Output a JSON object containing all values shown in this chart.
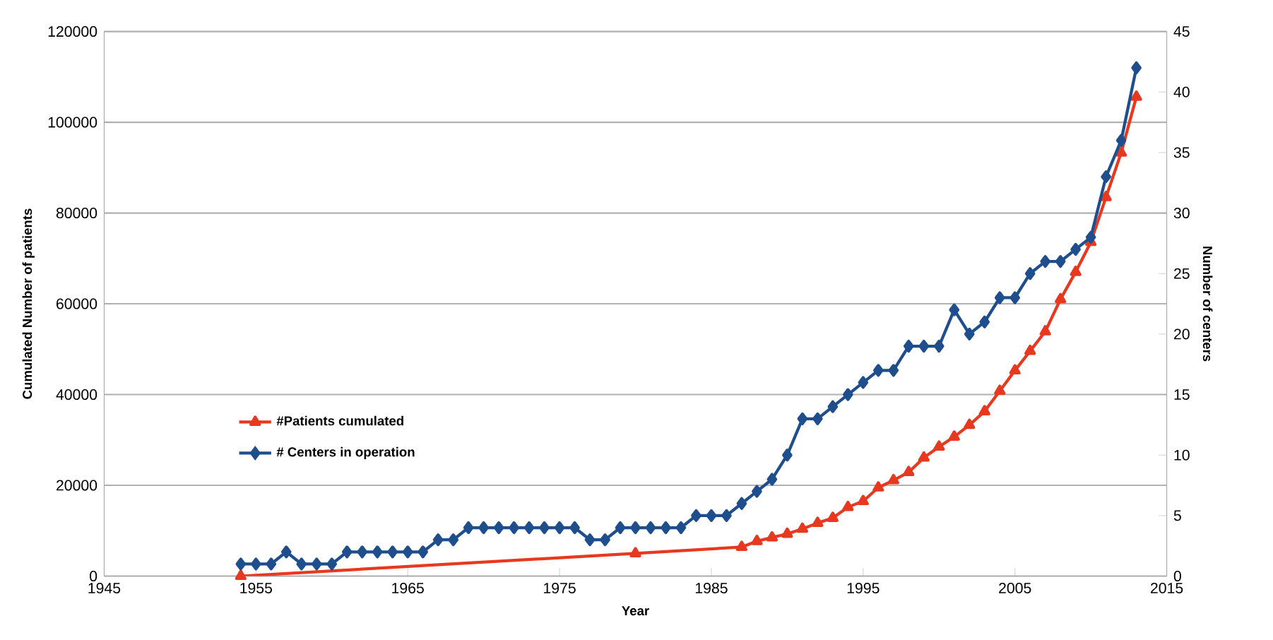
{
  "chart_data": {
    "type": "line",
    "xlabel": "Year",
    "ylabel": "Cumulated Number of patients",
    "y2label": "Number of centers",
    "xlim": [
      1945,
      2015
    ],
    "xticks": [
      1945,
      1955,
      1965,
      1975,
      1985,
      1995,
      2005,
      2015
    ],
    "ylim": [
      0,
      120000
    ],
    "yticks": [
      0,
      20000,
      40000,
      60000,
      80000,
      100000,
      120000
    ],
    "y2lim": [
      0,
      45
    ],
    "y2ticks": [
      0,
      5,
      10,
      15,
      20,
      25,
      30,
      35,
      40,
      45
    ],
    "grid": "y",
    "legend": "bottom left",
    "line_style": "solid",
    "series": [
      {
        "name": "#Patients cumulated",
        "color": "#e8381f",
        "marker": "triangle",
        "x": [
          1954,
          1980,
          1987,
          1988,
          1989,
          1990,
          1991,
          1992,
          1993,
          1994,
          1995,
          1996,
          1997,
          1998,
          1999,
          2000,
          2001,
          2002,
          2003,
          2004,
          2005,
          2006,
          2007,
          2008,
          2009,
          2010,
          2011,
          2012,
          2013
        ],
        "values": [
          0,
          5000,
          6400,
          7700,
          8500,
          9300,
          10400,
          11700,
          12800,
          15200,
          16500,
          19500,
          21100,
          22900,
          26100,
          28500,
          30700,
          33300,
          36300,
          40800,
          45300,
          49600,
          53900,
          61000,
          67000,
          73600,
          83500,
          93300,
          105600
        ]
      },
      {
        "name": "# Centers in operation",
        "color": "#1f4e8c",
        "marker": "diamond",
        "axis": "y2",
        "x": [
          1954,
          1955,
          1956,
          1957,
          1958,
          1959,
          1960,
          1961,
          1962,
          1963,
          1964,
          1965,
          1966,
          1967,
          1968,
          1969,
          1970,
          1971,
          1972,
          1973,
          1974,
          1975,
          1976,
          1977,
          1978,
          1979,
          1980,
          1981,
          1982,
          1983,
          1984,
          1985,
          1986,
          1987,
          1988,
          1989,
          1990,
          1991,
          1992,
          1993,
          1994,
          1995,
          1996,
          1997,
          1998,
          1999,
          2000,
          2001,
          2002,
          2003,
          2004,
          2005,
          2006,
          2007,
          2008,
          2009,
          2010,
          2011,
          2012,
          2013
        ],
        "values": [
          1,
          1,
          1,
          2,
          1,
          1,
          1,
          2,
          2,
          2,
          2,
          2,
          2,
          3,
          3,
          4,
          4,
          4,
          4,
          4,
          4,
          4,
          4,
          3,
          3,
          4,
          4,
          4,
          4,
          4,
          5,
          5,
          5,
          6,
          7,
          8,
          10,
          13,
          13,
          14,
          15,
          16,
          17,
          17,
          19,
          19,
          19,
          22,
          20,
          21,
          23,
          23,
          25,
          26,
          26,
          27,
          28,
          33,
          36,
          42
        ]
      }
    ]
  }
}
